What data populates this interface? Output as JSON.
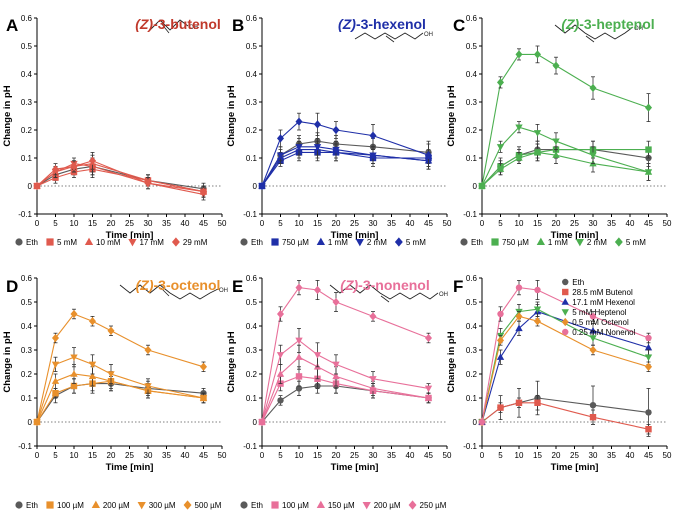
{
  "figure": {
    "shared": {
      "xlabel": "Time [min]",
      "ylabel": "Change in pH",
      "x_ticks": [
        0,
        5,
        10,
        15,
        20,
        25,
        30,
        35,
        40,
        45,
        50
      ],
      "y_ticks": [
        -0.1,
        0,
        0.1,
        0.2,
        0.3,
        0.4,
        0.5,
        0.6
      ],
      "xlim": [
        0,
        50
      ],
      "ylim": [
        -0.1,
        0.6
      ]
    }
  },
  "chart_data": [
    {
      "panel": "A",
      "type": "line",
      "title_italic": "(Z)",
      "title_rest": "-3-butenol",
      "title_color": "#C0392B",
      "xlabel": "Time [min]",
      "ylabel": "Change in pH",
      "xlim": [
        0,
        50
      ],
      "ylim": [
        -0.1,
        0.6
      ],
      "legend_position": "bottom",
      "x": [
        0,
        5,
        10,
        15,
        30,
        45
      ],
      "series": [
        {
          "name": "Eth",
          "color": "#5A5A5A",
          "marker": "circle",
          "values": [
            0,
            0.04,
            0.06,
            0.07,
            0.02,
            -0.01
          ],
          "errors": [
            0,
            0.02,
            0.02,
            0.03,
            0.02,
            0.02
          ]
        },
        {
          "name": "5 mM",
          "color": "#E05A4E",
          "marker": "square",
          "values": [
            0,
            0.03,
            0.05,
            0.06,
            0.02,
            -0.02
          ],
          "errors": [
            0,
            0.02,
            0.02,
            0.03,
            0.02,
            0.02
          ]
        },
        {
          "name": "10 mM",
          "color": "#E05A4E",
          "marker": "triangle-up",
          "values": [
            0,
            0.05,
            0.07,
            0.08,
            0.02,
            -0.02
          ],
          "errors": [
            0,
            0.02,
            0.02,
            0.03,
            0.02,
            0.02
          ]
        },
        {
          "name": "17 mM",
          "color": "#E05A4E",
          "marker": "triangle-down",
          "values": [
            0,
            0.05,
            0.08,
            0.07,
            0.01,
            -0.03
          ],
          "errors": [
            0,
            0.02,
            0.02,
            0.03,
            0.02,
            0.02
          ]
        },
        {
          "name": "29 mM",
          "color": "#E05A4E",
          "marker": "diamond",
          "values": [
            0,
            0.06,
            0.07,
            0.09,
            0.01,
            -0.02
          ],
          "errors": [
            0,
            0.02,
            0.02,
            0.03,
            0.02,
            0.02
          ]
        }
      ]
    },
    {
      "panel": "B",
      "type": "line",
      "title_italic": "(Z)",
      "title_rest": "-3-hexenol",
      "title_color": "#1F2FA8",
      "xlabel": "Time [min]",
      "ylabel": "Change in pH",
      "xlim": [
        0,
        50
      ],
      "ylim": [
        -0.1,
        0.6
      ],
      "legend_position": "bottom",
      "x": [
        0,
        5,
        10,
        15,
        20,
        30,
        45
      ],
      "series": [
        {
          "name": "Eth",
          "color": "#5A5A5A",
          "marker": "circle",
          "values": [
            0,
            0.11,
            0.15,
            0.16,
            0.15,
            0.14,
            0.12
          ],
          "errors": [
            0,
            0.03,
            0.03,
            0.03,
            0.03,
            0.03,
            0.04
          ]
        },
        {
          "name": "750 µM",
          "color": "#1F2FA8",
          "marker": "square",
          "values": [
            0,
            0.09,
            0.12,
            0.12,
            0.12,
            0.1,
            0.1
          ],
          "errors": [
            0,
            0.02,
            0.03,
            0.03,
            0.03,
            0.03,
            0.03
          ]
        },
        {
          "name": "1 mM",
          "color": "#1F2FA8",
          "marker": "triangle-up",
          "values": [
            0,
            0.1,
            0.13,
            0.13,
            0.12,
            0.11,
            0.09
          ],
          "errors": [
            0,
            0.02,
            0.03,
            0.03,
            0.03,
            0.03,
            0.03
          ]
        },
        {
          "name": "2 mM",
          "color": "#1F2FA8",
          "marker": "triangle-down",
          "values": [
            0,
            0.11,
            0.14,
            0.14,
            0.13,
            0.11,
            0.09
          ],
          "errors": [
            0,
            0.02,
            0.03,
            0.03,
            0.03,
            0.03,
            0.03
          ]
        },
        {
          "name": "5 mM",
          "color": "#1F2FA8",
          "marker": "diamond",
          "values": [
            0,
            0.17,
            0.23,
            0.22,
            0.2,
            0.18,
            0.11
          ],
          "errors": [
            0,
            0.03,
            0.03,
            0.04,
            0.03,
            0.04,
            0.04
          ]
        }
      ]
    },
    {
      "panel": "C",
      "type": "line",
      "title_italic": "(Z)",
      "title_rest": "-3-heptenol",
      "title_color": "#4CAF50",
      "xlabel": "Time [min]",
      "ylabel": "Change in pH",
      "xlim": [
        0,
        50
      ],
      "ylim": [
        -0.1,
        0.6
      ],
      "legend_position": "bottom",
      "x": [
        0,
        5,
        10,
        15,
        20,
        30,
        45
      ],
      "series": [
        {
          "name": "Eth",
          "color": "#5A5A5A",
          "marker": "circle",
          "values": [
            0,
            0.07,
            0.11,
            0.13,
            0.13,
            0.13,
            0.1
          ],
          "errors": [
            0,
            0.03,
            0.03,
            0.03,
            0.03,
            0.03,
            0.03
          ]
        },
        {
          "name": "750 µM",
          "color": "#4CAF50",
          "marker": "square",
          "values": [
            0,
            0.07,
            0.11,
            0.12,
            0.13,
            0.13,
            0.13
          ],
          "errors": [
            0,
            0.02,
            0.02,
            0.03,
            0.03,
            0.03,
            0.03
          ]
        },
        {
          "name": "1 mM",
          "color": "#4CAF50",
          "marker": "triangle-up",
          "values": [
            0,
            0.06,
            0.1,
            0.12,
            0.11,
            0.08,
            0.05
          ],
          "errors": [
            0,
            0.02,
            0.02,
            0.03,
            0.03,
            0.03,
            0.03
          ]
        },
        {
          "name": "2 mM",
          "color": "#4CAF50",
          "marker": "triangle-down",
          "values": [
            0,
            0.14,
            0.21,
            0.19,
            0.16,
            0.11,
            0.05
          ],
          "errors": [
            0,
            0.02,
            0.02,
            0.03,
            0.03,
            0.03,
            0.03
          ]
        },
        {
          "name": "5 mM",
          "color": "#4CAF50",
          "marker": "diamond",
          "values": [
            0,
            0.37,
            0.47,
            0.47,
            0.43,
            0.35,
            0.28
          ],
          "errors": [
            0,
            0.02,
            0.02,
            0.03,
            0.03,
            0.04,
            0.05
          ]
        }
      ]
    },
    {
      "panel": "D",
      "type": "line",
      "title_italic": "(Z)",
      "title_rest": "-3-octenol",
      "title_color": "#E8902C",
      "xlabel": "Time [min]",
      "ylabel": "Change in pH",
      "xlim": [
        0,
        50
      ],
      "ylim": [
        -0.1,
        0.6
      ],
      "legend_position": "bottom",
      "x": [
        0,
        5,
        10,
        15,
        20,
        30,
        45
      ],
      "series": [
        {
          "name": "Eth",
          "color": "#5A5A5A",
          "marker": "circle",
          "values": [
            0,
            0.11,
            0.15,
            0.16,
            0.16,
            0.14,
            0.12
          ],
          "errors": [
            0,
            0.03,
            0.03,
            0.04,
            0.03,
            0.03,
            0.02
          ]
        },
        {
          "name": "100 µM",
          "color": "#E8902C",
          "marker": "square",
          "values": [
            0,
            0.12,
            0.15,
            0.16,
            0.17,
            0.13,
            0.1
          ],
          "errors": [
            0,
            0.02,
            0.03,
            0.03,
            0.03,
            0.03,
            0.02
          ]
        },
        {
          "name": "200 µM",
          "color": "#E8902C",
          "marker": "triangle-up",
          "values": [
            0,
            0.17,
            0.2,
            0.19,
            0.17,
            0.13,
            0.1
          ],
          "errors": [
            0,
            0.03,
            0.04,
            0.04,
            0.04,
            0.03,
            0.02
          ]
        },
        {
          "name": "300 µM",
          "color": "#E8902C",
          "marker": "triangle-down",
          "values": [
            0,
            0.24,
            0.27,
            0.24,
            0.2,
            0.15,
            0.1
          ],
          "errors": [
            0,
            0.03,
            0.04,
            0.04,
            0.04,
            0.03,
            0.02
          ]
        },
        {
          "name": "500 µM",
          "color": "#E8902C",
          "marker": "diamond",
          "values": [
            0,
            0.35,
            0.45,
            0.42,
            0.38,
            0.3,
            0.23
          ],
          "errors": [
            0,
            0.02,
            0.02,
            0.02,
            0.02,
            0.02,
            0.02
          ]
        }
      ]
    },
    {
      "panel": "E",
      "type": "line",
      "title_italic": "(Z)",
      "title_rest": "-3-nonenol",
      "title_color": "#E8709A",
      "xlabel": "Time [min]",
      "ylabel": "Change in pH",
      "xlim": [
        0,
        50
      ],
      "ylim": [
        -0.1,
        0.6
      ],
      "legend_position": "bottom",
      "x": [
        0,
        5,
        10,
        15,
        20,
        30,
        45
      ],
      "series": [
        {
          "name": "Eth",
          "color": "#5A5A5A",
          "marker": "circle",
          "values": [
            0,
            0.09,
            0.14,
            0.15,
            0.15,
            0.13,
            0.1
          ],
          "errors": [
            0,
            0.02,
            0.03,
            0.03,
            0.03,
            0.03,
            0.02
          ]
        },
        {
          "name": "100 µM",
          "color": "#E8709A",
          "marker": "square",
          "values": [
            0,
            0.16,
            0.19,
            0.18,
            0.16,
            0.13,
            0.1
          ],
          "errors": [
            0,
            0.03,
            0.04,
            0.04,
            0.04,
            0.03,
            0.02
          ]
        },
        {
          "name": "150 µM",
          "color": "#E8709A",
          "marker": "triangle-up",
          "values": [
            0,
            0.2,
            0.27,
            0.23,
            0.19,
            0.14,
            0.1
          ],
          "errors": [
            0,
            0.04,
            0.05,
            0.05,
            0.04,
            0.03,
            0.02
          ]
        },
        {
          "name": "200 µM",
          "color": "#E8709A",
          "marker": "triangle-down",
          "values": [
            0,
            0.28,
            0.34,
            0.28,
            0.24,
            0.18,
            0.14
          ],
          "errors": [
            0,
            0.04,
            0.05,
            0.05,
            0.04,
            0.03,
            0.02
          ]
        },
        {
          "name": "250 µM",
          "color": "#E8709A",
          "marker": "diamond",
          "values": [
            0,
            0.45,
            0.56,
            0.55,
            0.5,
            0.44,
            0.35
          ],
          "errors": [
            0,
            0.03,
            0.03,
            0.04,
            0.04,
            0.02,
            0.02
          ]
        }
      ]
    },
    {
      "panel": "F",
      "type": "line",
      "xlabel": "Time [min]",
      "ylabel": "Change in pH",
      "xlim": [
        0,
        50
      ],
      "ylim": [
        -0.1,
        0.6
      ],
      "legend_position": "top-right",
      "x": [
        0,
        5,
        10,
        15,
        30,
        45
      ],
      "series": [
        {
          "name": "Eth",
          "color": "#5A5A5A",
          "marker": "circle",
          "values": [
            0,
            0.06,
            0.08,
            0.1,
            0.07,
            0.04
          ],
          "errors": [
            0,
            0.05,
            0.06,
            0.07,
            0.08,
            0.1
          ]
        },
        {
          "name": "28.5 mM Butenol",
          "color": "#E05A4E",
          "marker": "square",
          "values": [
            0,
            0.06,
            0.08,
            0.08,
            0.02,
            -0.03
          ],
          "errors": [
            0,
            0.02,
            0.02,
            0.03,
            0.03,
            0.02
          ]
        },
        {
          "name": "17.1 mM Hexenol",
          "color": "#1F2FA8",
          "marker": "triangle-up",
          "values": [
            0,
            0.27,
            0.39,
            0.46,
            0.38,
            0.31
          ],
          "errors": [
            0,
            0.03,
            0.03,
            0.03,
            0.03,
            0.03
          ]
        },
        {
          "name": "5 mM Heptenol",
          "color": "#4CAF50",
          "marker": "triangle-down",
          "values": [
            0,
            0.36,
            0.46,
            0.47,
            0.35,
            0.27
          ],
          "errors": [
            0,
            0.03,
            0.03,
            0.03,
            0.03,
            0.03
          ]
        },
        {
          "name": "0.5 mM Octenol",
          "color": "#E8902C",
          "marker": "diamond",
          "values": [
            0,
            0.34,
            0.44,
            0.42,
            0.3,
            0.23
          ],
          "errors": [
            0,
            0.02,
            0.02,
            0.02,
            0.02,
            0.02
          ]
        },
        {
          "name": "0.25 mM Nonenol",
          "color": "#E8709A",
          "marker": "circle",
          "values": [
            0,
            0.45,
            0.56,
            0.55,
            0.44,
            0.35
          ],
          "errors": [
            0,
            0.03,
            0.03,
            0.04,
            0.02,
            0.02
          ]
        }
      ]
    }
  ]
}
